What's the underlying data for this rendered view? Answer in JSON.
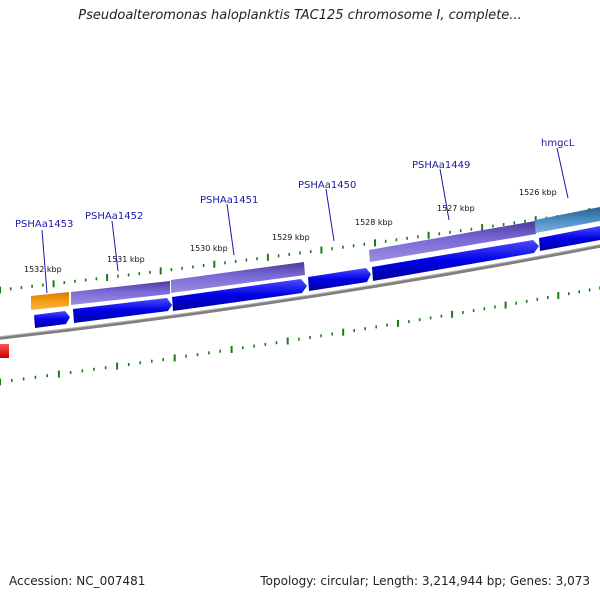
{
  "title": "Pseudoalteromonas haloplanktis TAC125 chromosome I, complete...",
  "footer": {
    "accession": "Accession: NC_007481",
    "summary": "Topology: circular; Length: 3,214,944 bp; Genes: 3,073"
  },
  "colors": {
    "backbone": "#808080",
    "cds": "#0000e6",
    "gene": "#6a5acd",
    "gene_orange": "#f39c12",
    "gene_steel": "#4a8ec2",
    "marker_red": "#ff2222",
    "tick": "#1a7a1a",
    "leader": "#1a1aa6"
  },
  "scale": {
    "kbp_labels": [
      "1532 kbp",
      "1531 kbp",
      "1530 kbp",
      "1529 kbp",
      "1528 kbp",
      "1527 kbp",
      "1526 kbp"
    ]
  },
  "genes": [
    {
      "label": "PSHAa1453"
    },
    {
      "label": "PSHAa1452"
    },
    {
      "label": "PSHAa1451"
    },
    {
      "label": "PSHAa1450"
    },
    {
      "label": "PSHAa1449"
    },
    {
      "label": "hmgcL"
    }
  ]
}
